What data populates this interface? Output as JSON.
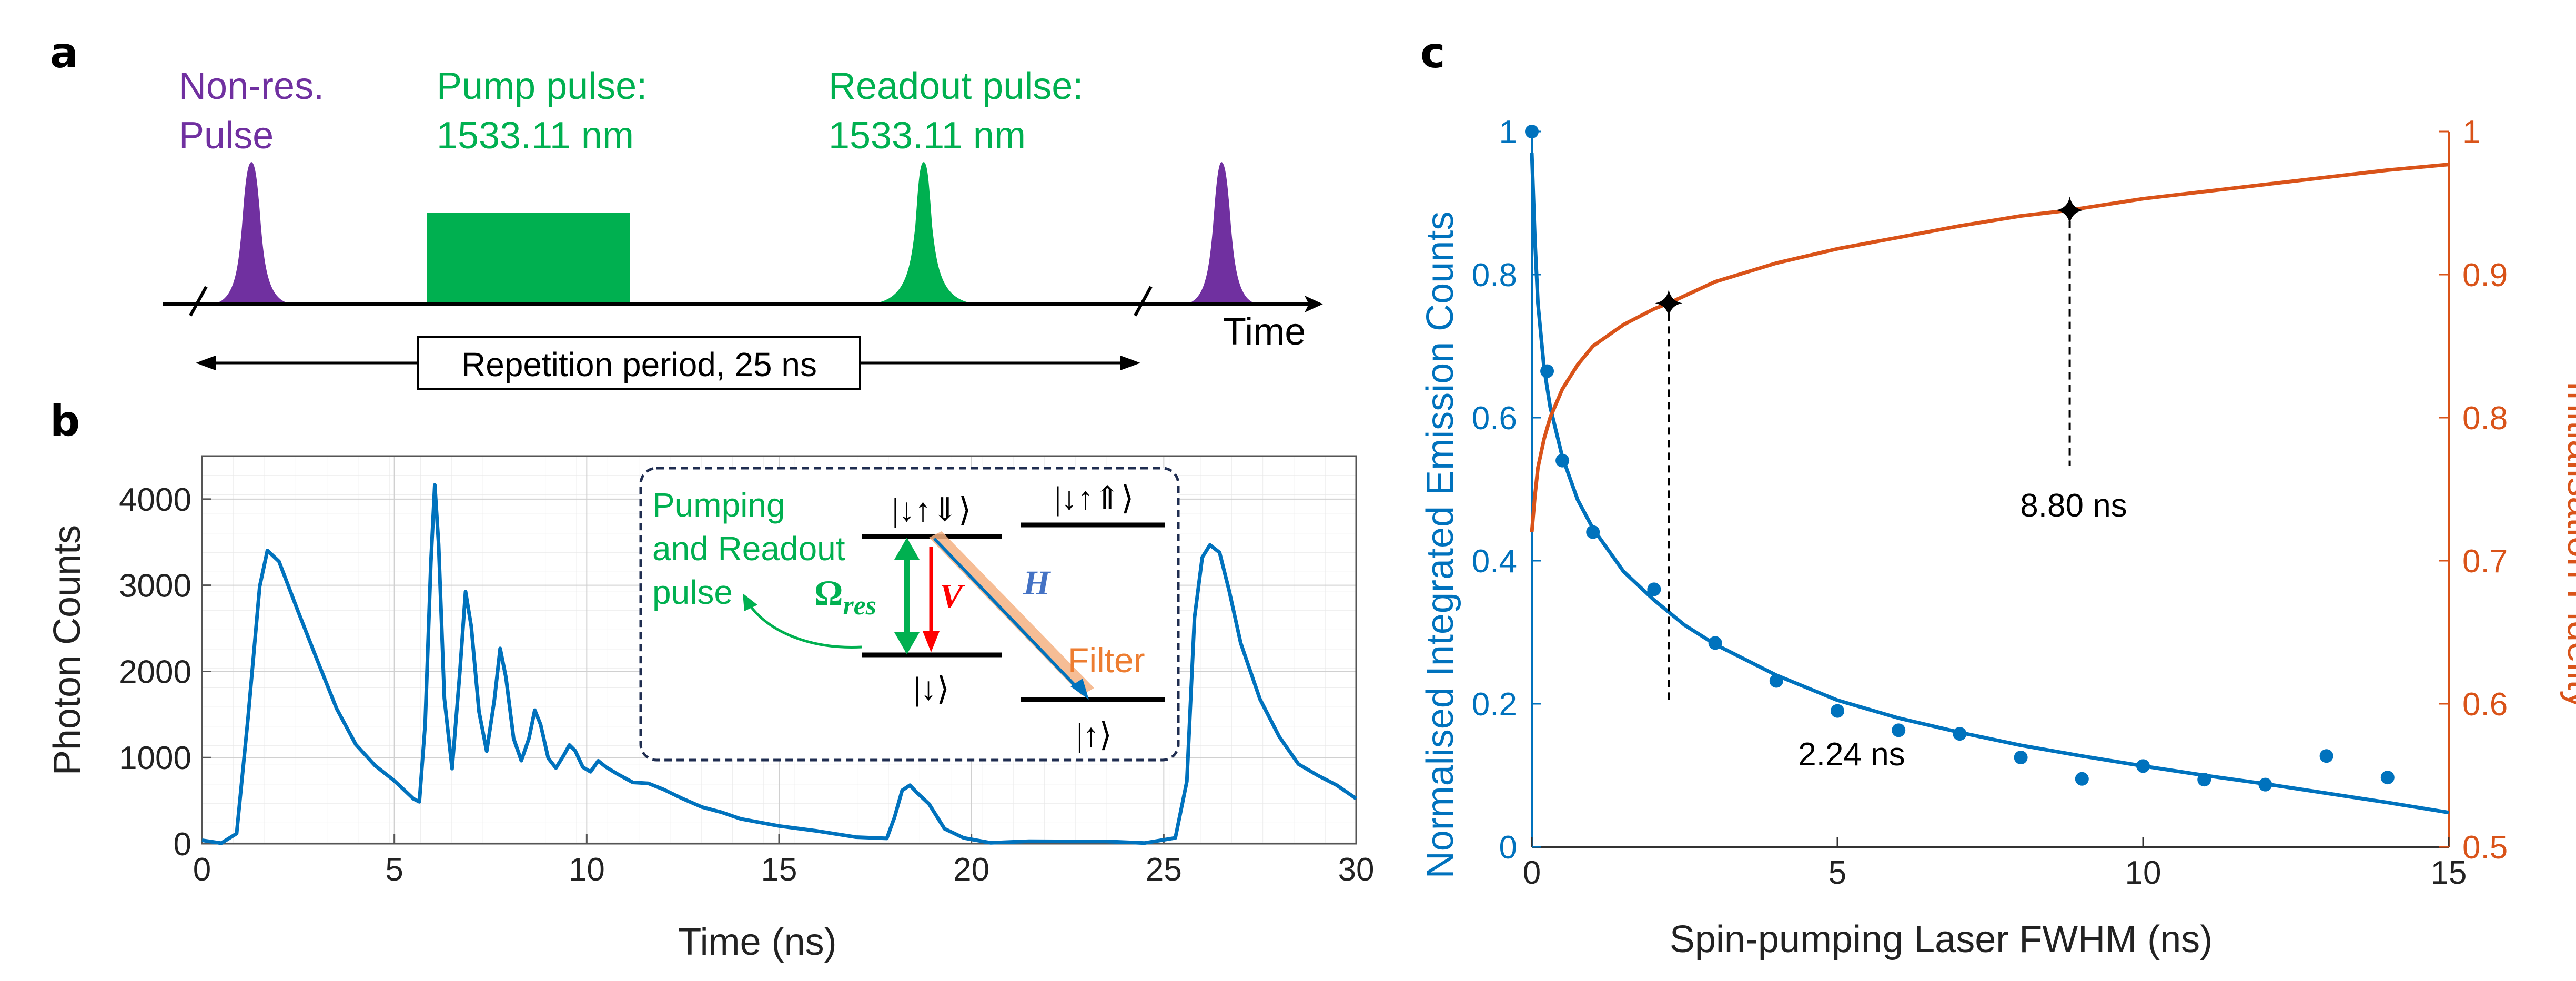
{
  "colors": {
    "purple": "#7030a0",
    "green": "#00b050",
    "blue": "#0072bd",
    "orange": "#d95319",
    "red": "#ff0000",
    "filter_fill": "#f4b183",
    "dark_navy": "#1f2d50"
  },
  "panel_a": {
    "letter": "a",
    "nonres_label_1": "Non-res.",
    "nonres_label_2": "Pulse",
    "pump_label_1": "Pump pulse:",
    "pump_label_2": "1533.11 nm",
    "readout_label_1": "Readout pulse:",
    "readout_label_2": "1533.11 nm",
    "time_label": "Time",
    "period_label": "Repetition period, 25 ns"
  },
  "panel_b": {
    "letter": "b",
    "inset": {
      "pumping_label_1": "Pumping",
      "pumping_label_2": "and Readout",
      "pumping_label_3": "pulse",
      "omega_label": "Ω",
      "omega_sub": "res",
      "v_label": "V",
      "h_label": "H",
      "filter_label": "Filter",
      "level_top_right": "|↓↑⇑⟩",
      "level_excited": "|↓↑⇓⟩",
      "level_down": "|↓⟩",
      "level_up": "|↑⟩"
    }
  },
  "panel_c": {
    "letter": "c",
    "annot_1": "2.24 ns",
    "annot_2": "8.80 ns"
  },
  "chart_data": [
    {
      "type": "line",
      "title": "",
      "xlabel": "Time (ns)",
      "ylabel": "Photon Counts",
      "xlim": [
        0,
        30
      ],
      "ylim": [
        0,
        4500
      ],
      "xticks": [
        0,
        5,
        10,
        15,
        20,
        25,
        30
      ],
      "yticks": [
        0,
        1000,
        2000,
        3000,
        4000
      ],
      "grid": true,
      "series": [
        {
          "name": "Photon Counts",
          "color": "#0072bd",
          "x": [
            0,
            0.5,
            0.9,
            1.2,
            1.5,
            1.7,
            2.0,
            2.5,
            3.0,
            3.5,
            4.0,
            4.5,
            5.0,
            5.5,
            5.65,
            5.8,
            5.95,
            6.05,
            6.15,
            6.3,
            6.5,
            6.7,
            6.85,
            7.0,
            7.2,
            7.4,
            7.6,
            7.75,
            7.9,
            8.1,
            8.3,
            8.5,
            8.65,
            8.8,
            9.0,
            9.2,
            9.4,
            9.55,
            9.7,
            9.9,
            10.1,
            10.3,
            10.5,
            10.8,
            11.2,
            11.6,
            12.0,
            12.5,
            13.0,
            13.5,
            14.0,
            15.0,
            16.0,
            17.0,
            17.8,
            18.0,
            18.2,
            18.4,
            18.6,
            18.9,
            19.3,
            19.8,
            20.5,
            21.5,
            22.5,
            23.5,
            24.5,
            25.3,
            25.6,
            25.8,
            26.0,
            26.2,
            26.45,
            26.7,
            27.0,
            27.5,
            28.0,
            28.5,
            29.0,
            29.5,
            30.0
          ],
          "y": [
            40,
            40,
            120,
            1500,
            3000,
            3420,
            3300,
            2700,
            2100,
            1550,
            1150,
            900,
            700,
            520,
            480,
            1400,
            3300,
            4180,
            3500,
            1700,
            900,
            2000,
            2950,
            2500,
            1500,
            1050,
            1650,
            2230,
            1900,
            1200,
            1000,
            1250,
            1560,
            1400,
            1000,
            900,
            1060,
            1180,
            1060,
            880,
            820,
            960,
            870,
            780,
            700,
            730,
            640,
            540,
            430,
            370,
            300,
            210,
            140,
            60,
            40,
            300,
            600,
            650,
            560,
            430,
            180,
            70,
            40,
            30,
            30,
            30,
            30,
            40,
            700,
            2600,
            3300,
            3450,
            3350,
            2900,
            2300,
            1700,
            1250,
            950,
            800,
            680,
            550
          ]
        }
      ]
    },
    {
      "type": "line+scatter",
      "title": "",
      "xlabel": "Spin-pumping Laser FWHM (ns)",
      "ylabel": "Normalised Integrated Emission Counts",
      "y2label": "Initialisation Fidelity",
      "xlim": [
        0,
        15
      ],
      "ylim": [
        0,
        1
      ],
      "y2lim": [
        0.5,
        1
      ],
      "xticks": [
        0,
        5,
        10,
        15
      ],
      "yticks": [
        0,
        0.2,
        0.4,
        0.6,
        0.8,
        1
      ],
      "yticklabels": [
        "0",
        "0.2",
        "0.4",
        "0.6",
        "0.8",
        "1"
      ],
      "y2ticks": [
        0.5,
        0.6,
        0.7,
        0.8,
        0.9,
        1
      ],
      "y2ticklabels": [
        "0.5",
        "0.6",
        "0.7",
        "0.8",
        "0.9",
        "1"
      ],
      "grid": false,
      "series": [
        {
          "name": "Emission counts (data)",
          "axis": "left",
          "kind": "scatter",
          "color": "#0072bd",
          "x": [
            0,
            0.25,
            0.5,
            1,
            2,
            3,
            4,
            5,
            6,
            7,
            8,
            9,
            10,
            11,
            12,
            13,
            14
          ],
          "y": [
            1.0,
            0.665,
            0.54,
            0.44,
            0.36,
            0.285,
            0.232,
            0.19,
            0.163,
            0.158,
            0.125,
            0.095,
            0.113,
            0.094,
            0.087,
            0.127,
            0.097
          ]
        },
        {
          "name": "Emission counts (fit)",
          "axis": "left",
          "kind": "line",
          "color": "#0072bd",
          "x": [
            0,
            0.05,
            0.1,
            0.2,
            0.3,
            0.5,
            0.75,
            1,
            1.5,
            2,
            2.5,
            3,
            4,
            5,
            6,
            7,
            8,
            9,
            10,
            11,
            12,
            13,
            14,
            15
          ],
          "y": [
            0.97,
            0.85,
            0.76,
            0.67,
            0.615,
            0.545,
            0.485,
            0.445,
            0.385,
            0.345,
            0.31,
            0.283,
            0.24,
            0.205,
            0.18,
            0.16,
            0.142,
            0.127,
            0.113,
            0.1,
            0.088,
            0.075,
            0.062,
            0.048
          ]
        },
        {
          "name": "Initialisation fidelity",
          "axis": "right",
          "kind": "line",
          "color": "#d95319",
          "x": [
            0,
            0.05,
            0.1,
            0.2,
            0.3,
            0.5,
            0.75,
            1,
            1.5,
            2,
            2.24,
            3,
            4,
            5,
            6,
            7,
            8,
            8.8,
            10,
            11,
            12,
            13,
            14,
            15
          ],
          "y": [
            0.72,
            0.745,
            0.765,
            0.785,
            0.8,
            0.82,
            0.837,
            0.85,
            0.865,
            0.876,
            0.88,
            0.895,
            0.908,
            0.918,
            0.926,
            0.934,
            0.941,
            0.945,
            0.953,
            0.958,
            0.963,
            0.968,
            0.973,
            0.977
          ]
        }
      ],
      "markers": [
        {
          "x": 2.24,
          "y2": 0.88,
          "label": "2.24 ns"
        },
        {
          "x": 8.8,
          "y2": 0.945,
          "label": "8.80 ns"
        }
      ]
    }
  ]
}
